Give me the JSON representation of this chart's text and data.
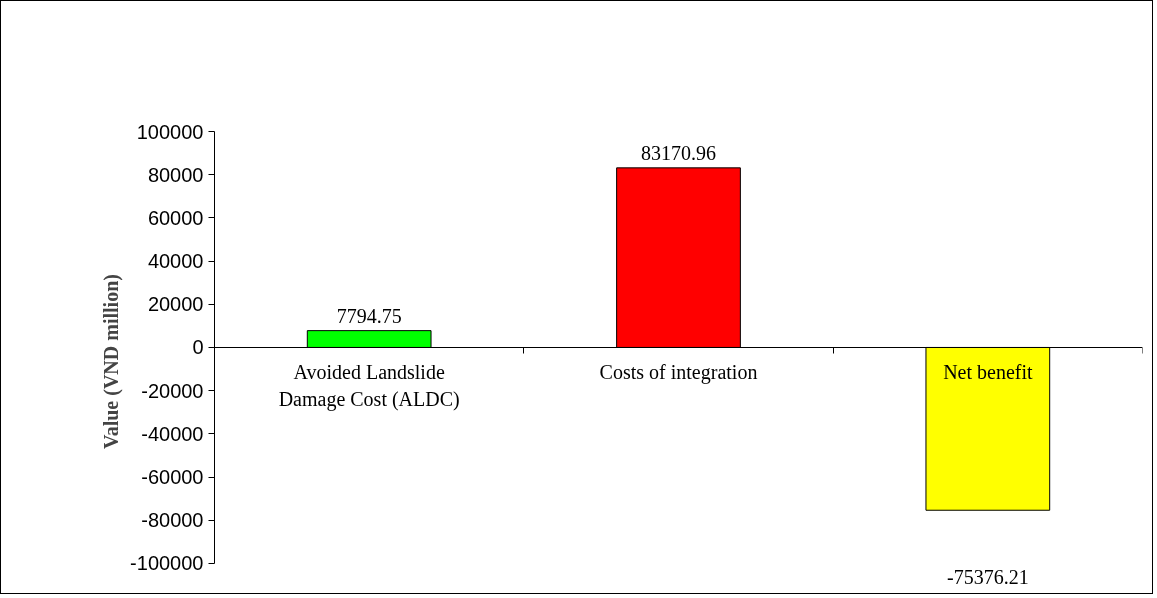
{
  "chart_data": {
    "type": "bar",
    "ylabel": "Value (VND million)",
    "categories": [
      "Avoided Landslide Damage Cost (ALDC)",
      "Costs of integration",
      "Net benefit"
    ],
    "values": [
      7794.75,
      83170.96,
      -75376.21
    ],
    "colors": [
      "#00ff00",
      "#ff0000",
      "#ffff00"
    ],
    "ylim": [
      -100000,
      100000
    ],
    "yticks": [
      -100000,
      -80000,
      -60000,
      -40000,
      -20000,
      0,
      20000,
      40000,
      60000,
      80000,
      100000
    ],
    "data_labels": true,
    "grid": false
  }
}
